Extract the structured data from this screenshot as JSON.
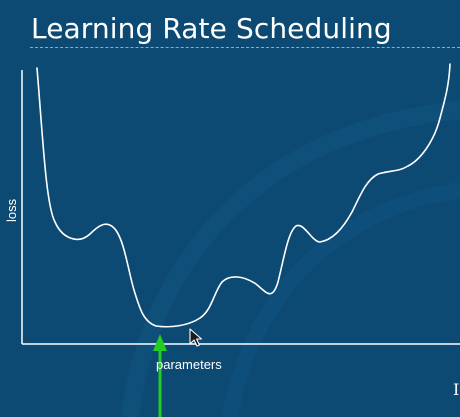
{
  "slide": {
    "title": "Learning Rate Scheduling",
    "ylabel": "loss",
    "xlabel": "parameters",
    "corner_glyph": "I"
  },
  "colors": {
    "background": "#0c4a73",
    "curve": "#ffffff",
    "arrow": "#22cc22",
    "title_rule": "#c9a06a"
  },
  "icons": {
    "arrow": "green-up-arrow-icon",
    "cursor": "mouse-cursor-icon"
  }
}
